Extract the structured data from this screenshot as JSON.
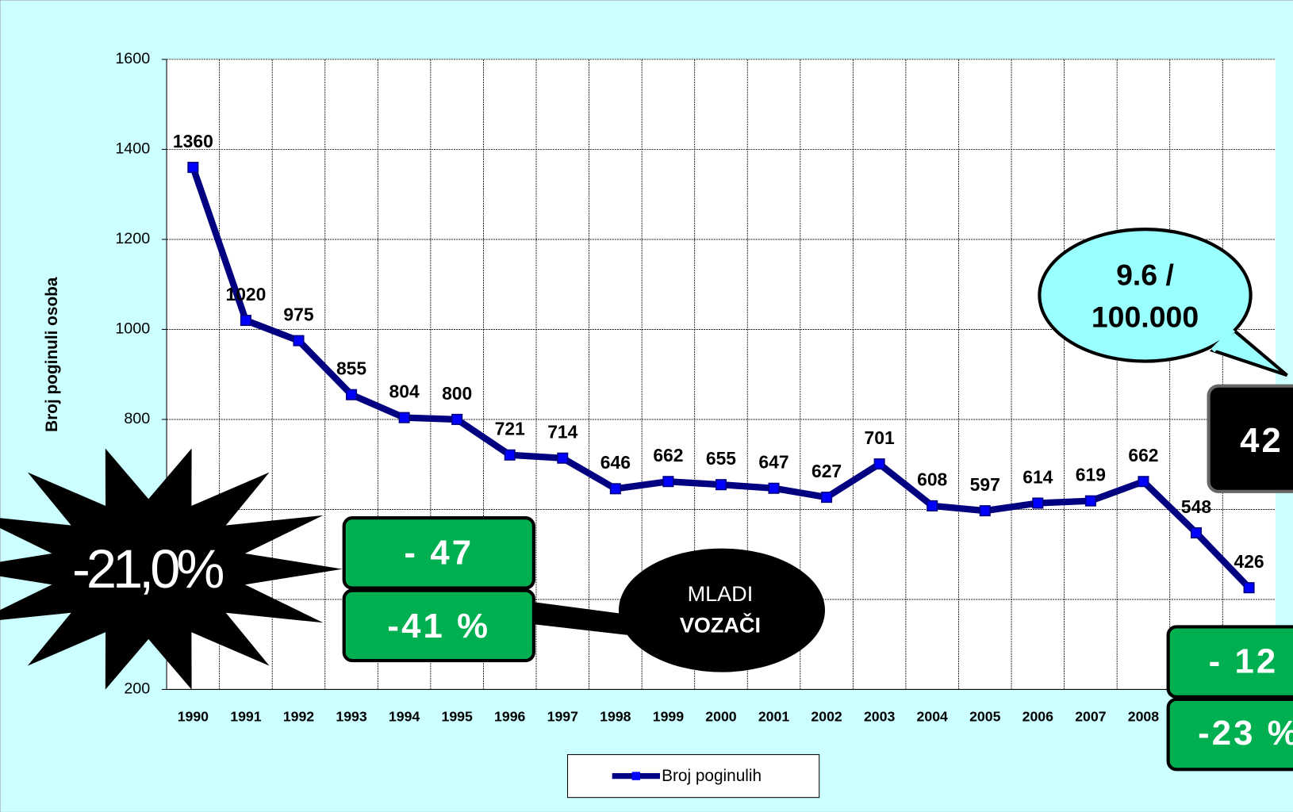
{
  "chart_data": {
    "type": "line",
    "y_axis_label": "Broj poginuli osoba",
    "categories": [
      "1990",
      "1991",
      "1992",
      "1993",
      "1994",
      "1995",
      "1996",
      "1997",
      "1998",
      "1999",
      "2000",
      "2001",
      "2002",
      "2003",
      "2004",
      "2005",
      "2006",
      "2007",
      "2008",
      null,
      null
    ],
    "series": [
      {
        "name": "Broj poginulih",
        "color": "#000080",
        "marker_color": "#0000ff",
        "values": [
          1360,
          1020,
          975,
          855,
          804,
          800,
          721,
          714,
          646,
          662,
          655,
          647,
          627,
          701,
          608,
          597,
          614,
          619,
          662,
          548,
          426
        ]
      }
    ],
    "ylim": [
      200,
      1600
    ],
    "yticks": [
      200,
      400,
      600,
      800,
      1000,
      1200,
      1400,
      1600
    ],
    "grid": true,
    "legend": "bottom",
    "annotations": {
      "burst": "-21,0%",
      "box1": "- 47",
      "box2": "-41 %",
      "bubble_line1": "MLADI",
      "bubble_line2": "VOZAČI",
      "callout_line1": "9.6 /",
      "callout_line2": "100.000",
      "black_box": "42",
      "box3": "- 12",
      "box4": "-23 %"
    }
  }
}
